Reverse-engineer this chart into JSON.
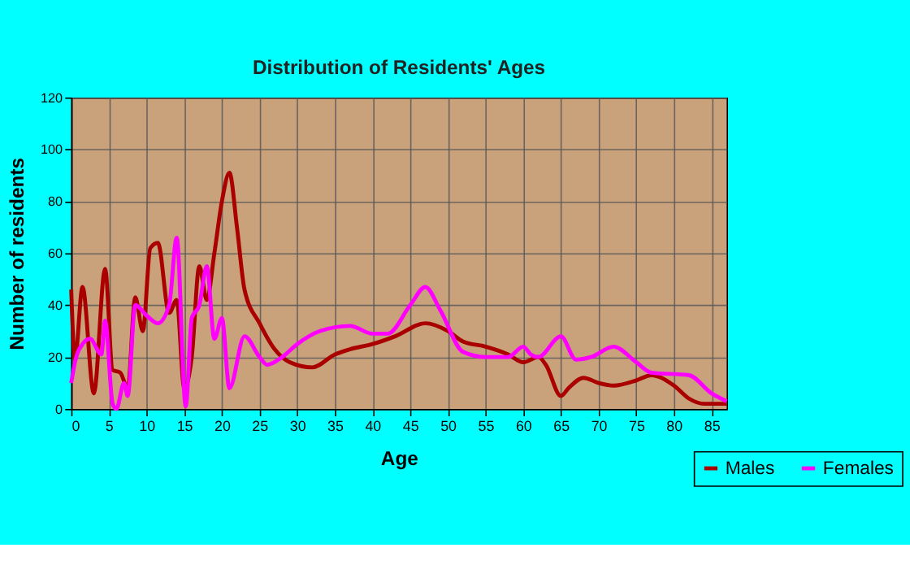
{
  "chart_data": {
    "type": "line",
    "title": "Distribution of Residents' Ages",
    "xlabel": "Age",
    "ylabel": "Number of residents",
    "xlim": [
      0,
      87
    ],
    "xticks": [
      0,
      5,
      10,
      15,
      20,
      25,
      30,
      35,
      40,
      45,
      50,
      55,
      60,
      65,
      70,
      75,
      80,
      85
    ],
    "ylim": [
      0,
      120
    ],
    "yticks": [
      0,
      20,
      40,
      60,
      80,
      100,
      120
    ],
    "grid": true,
    "legend": "bottom right",
    "marker": "none",
    "line_style": "solid",
    "series": [
      {
        "name": "Males",
        "color": "#aa0000",
        "x": [
          0,
          0.5,
          1.5,
          3,
          4.5,
          5.5,
          6.5,
          7.5,
          8.5,
          9.5,
          10.5,
          11.5,
          13,
          14,
          15,
          16,
          17,
          18,
          19,
          20,
          21,
          22,
          23,
          25,
          27,
          29,
          32,
          35,
          37,
          40,
          43,
          47,
          50,
          52,
          55,
          58,
          60,
          62,
          63,
          65,
          66,
          68,
          70,
          72,
          75,
          77,
          80,
          82,
          84,
          87
        ],
        "values": [
          46,
          19,
          47,
          6,
          54,
          15,
          14,
          8,
          43,
          30,
          62,
          64,
          37,
          42,
          8,
          20,
          55,
          42,
          60,
          80,
          91,
          70,
          46,
          33,
          23,
          18,
          16,
          21,
          23,
          25,
          28,
          33,
          30,
          26,
          24,
          21,
          18,
          20,
          17,
          5,
          8,
          12,
          10,
          9,
          11,
          13,
          9,
          4,
          2,
          2
        ]
      },
      {
        "name": "Females",
        "color": "#ff00ff",
        "x": [
          0,
          0.5,
          1.5,
          2.5,
          4,
          4.5,
          5.5,
          6,
          7,
          7.5,
          8.5,
          10,
          11.5,
          13,
          14,
          15.2,
          16,
          17,
          18,
          19,
          20,
          21,
          23,
          25,
          26,
          28,
          30,
          33,
          37,
          40,
          42,
          45,
          47,
          49,
          52,
          55,
          58,
          60,
          61,
          62,
          65,
          67,
          69,
          72,
          75,
          77,
          82,
          85,
          87
        ],
        "values": [
          10,
          18,
          25,
          27,
          21,
          34,
          2,
          0,
          10,
          5,
          40,
          36,
          33,
          40,
          66,
          1,
          35,
          40,
          55,
          27,
          35,
          8,
          28,
          20,
          17,
          20,
          25,
          30,
          32,
          29,
          29,
          40,
          47,
          38,
          22,
          20,
          20,
          24,
          21,
          20,
          28,
          19,
          20,
          24,
          18,
          14,
          13,
          6,
          3
        ]
      }
    ]
  }
}
